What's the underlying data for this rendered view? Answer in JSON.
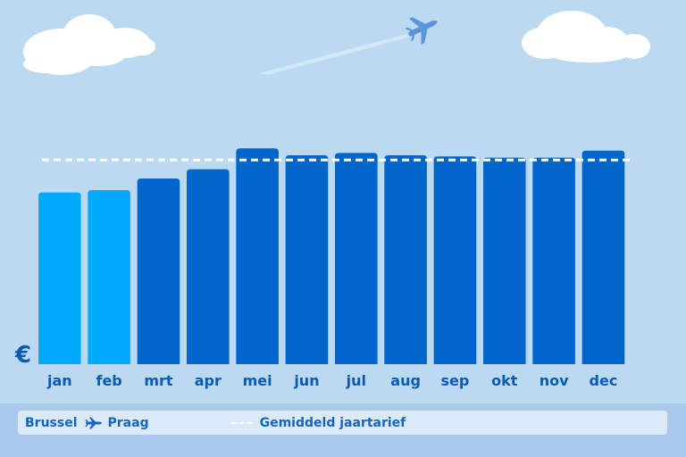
{
  "chart_data": {
    "type": "bar",
    "categories": [
      "jan",
      "feb",
      "mrt",
      "apr",
      "mei",
      "jun",
      "jul",
      "aug",
      "sep",
      "okt",
      "nov",
      "dec"
    ],
    "values": [
      74,
      75,
      80,
      84,
      93,
      90,
      91,
      90,
      89.5,
      89,
      89,
      92
    ],
    "highlighted": [
      "jan",
      "feb"
    ],
    "reference_line": {
      "label": "Gemiddeld jaartarief",
      "value": 88
    },
    "ylabel": "€",
    "ylim": [
      0,
      100
    ],
    "grid": false,
    "colors": {
      "highlight": "#00aaff",
      "normal": "#0066cc",
      "reference": "#ffffff"
    }
  },
  "legend": {
    "origin": "Brussel",
    "destination": "Praag",
    "average_label": "Gemiddeld jaartarief",
    "route_icon": "plane-icon"
  },
  "background": {
    "sky_color": "#bcd9f2",
    "icons": [
      "cloud-icon",
      "cloud-icon",
      "airplane-icon"
    ]
  }
}
